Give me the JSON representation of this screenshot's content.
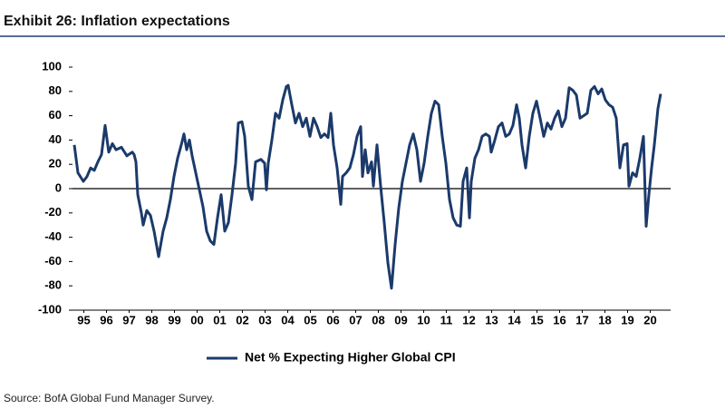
{
  "chart_data": {
    "type": "line",
    "title": "Exhibit 26: Inflation expectations",
    "source": "Source: BofA Global Fund Manager Survey.",
    "x": [
      1995.08,
      1995.24,
      1995.48,
      1995.64,
      1995.8,
      1995.96,
      1996.12,
      1996.28,
      1996.44,
      1996.6,
      1996.76,
      1996.92,
      1997.16,
      1997.4,
      1997.64,
      1997.72,
      1997.8,
      1997.88,
      1998.04,
      1998.12,
      1998.28,
      1998.44,
      1998.6,
      1998.8,
      1999,
      1999.16,
      1999.32,
      1999.48,
      1999.64,
      1999.8,
      1999.92,
      2000.04,
      2000.16,
      2000.28,
      2000.44,
      2000.6,
      2000.76,
      2000.92,
      2001.08,
      2001.24,
      2001.4,
      2001.56,
      2001.72,
      2001.88,
      2002.04,
      2002.2,
      2002.32,
      2002.48,
      2002.6,
      2002.76,
      2002.92,
      2003.08,
      2003.32,
      2003.48,
      2003.56,
      2003.64,
      2003.8,
      2003.96,
      2004.12,
      2004.28,
      2004.44,
      2004.52,
      2004.68,
      2004.84,
      2005,
      2005.16,
      2005.32,
      2005.48,
      2005.64,
      2005.8,
      2005.96,
      2006.12,
      2006.28,
      2006.4,
      2006.52,
      2006.68,
      2006.84,
      2006.92,
      2007.08,
      2007.24,
      2007.4,
      2007.56,
      2007.72,
      2007.8,
      2007.92,
      2008.04,
      2008.2,
      2008.28,
      2008.44,
      2008.6,
      2008.76,
      2008.92,
      2009.08,
      2009.24,
      2009.4,
      2009.56,
      2009.72,
      2009.88,
      2010.04,
      2010.2,
      2010.36,
      2010.52,
      2010.68,
      2010.84,
      2011,
      2011.16,
      2011.32,
      2011.48,
      2011.64,
      2011.8,
      2011.96,
      2012.12,
      2012.24,
      2012.4,
      2012.52,
      2012.6,
      2012.76,
      2012.92,
      2013.08,
      2013.24,
      2013.4,
      2013.48,
      2013.64,
      2013.8,
      2013.96,
      2014.12,
      2014.28,
      2014.44,
      2014.6,
      2014.72,
      2014.84,
      2015,
      2015.16,
      2015.32,
      2015.48,
      2015.64,
      2015.8,
      2015.96,
      2016.12,
      2016.28,
      2016.44,
      2016.6,
      2016.76,
      2016.92,
      2017.08,
      2017.24,
      2017.4,
      2017.56,
      2017.72,
      2017.88,
      2018.04,
      2018.2,
      2018.36,
      2018.52,
      2018.68,
      2018.84,
      2019,
      2019.16,
      2019.32,
      2019.48,
      2019.56,
      2019.72,
      2019.88,
      2020.04,
      2020.2,
      2020.32,
      2020.44,
      2020.56,
      2020.68,
      2020.84,
      2020.96
    ],
    "series": [
      {
        "name": "Net % Expecting Higher Global CPI",
        "color": "#1b3a6b",
        "values": [
          36,
          13,
          6,
          10,
          17,
          15,
          22,
          28,
          52,
          30,
          37,
          32,
          34,
          27,
          30,
          28,
          22,
          -5,
          -20,
          -30,
          -18,
          -22,
          -35,
          -56,
          -35,
          -24,
          -9,
          10,
          25,
          36,
          45,
          32,
          40,
          27,
          13,
          -1,
          -15,
          -35,
          -43,
          -46,
          -24,
          -5,
          -35,
          -28,
          -5,
          21,
          54,
          55,
          43,
          2,
          -9,
          22,
          24,
          21,
          -1,
          21,
          40,
          62,
          58,
          73,
          84,
          85,
          69,
          54,
          62,
          51,
          58,
          43,
          58,
          51,
          42,
          45,
          42,
          62,
          36,
          17,
          -13,
          10,
          13,
          17,
          28,
          43,
          51,
          10,
          32,
          13,
          22,
          2,
          36,
          2,
          -28,
          -61,
          -82,
          -46,
          -16,
          6,
          21,
          36,
          45,
          32,
          6,
          21,
          43,
          62,
          72,
          69,
          43,
          21,
          -9,
          -24,
          -30,
          -31,
          6,
          17,
          -24,
          6,
          25,
          32,
          43,
          45,
          43,
          30,
          40,
          51,
          54,
          43,
          45,
          52,
          69,
          58,
          36,
          17,
          43,
          62,
          72,
          58,
          43,
          54,
          49,
          58,
          64,
          51,
          58,
          83,
          81,
          77,
          58,
          60,
          62,
          81,
          84,
          78,
          82,
          73,
          69,
          67,
          58,
          17,
          36,
          37,
          2,
          13,
          10,
          25,
          43,
          -31,
          -5,
          17,
          36,
          66,
          78
        ]
      }
    ],
    "xlim": [
      1995,
      2021
    ],
    "xticks": [
      {
        "value": 1995.5,
        "label": "95"
      },
      {
        "value": 1996.5,
        "label": "96"
      },
      {
        "value": 1997.5,
        "label": "97"
      },
      {
        "value": 1998.5,
        "label": "98"
      },
      {
        "value": 1999.5,
        "label": "99"
      },
      {
        "value": 2000.5,
        "label": "00"
      },
      {
        "value": 2001.5,
        "label": "01"
      },
      {
        "value": 2002.5,
        "label": "02"
      },
      {
        "value": 2003.5,
        "label": "03"
      },
      {
        "value": 2004.5,
        "label": "04"
      },
      {
        "value": 2005.5,
        "label": "05"
      },
      {
        "value": 2006.5,
        "label": "06"
      },
      {
        "value": 2007.5,
        "label": "07"
      },
      {
        "value": 2008.5,
        "label": "08"
      },
      {
        "value": 2009.5,
        "label": "09"
      },
      {
        "value": 2010.5,
        "label": "10"
      },
      {
        "value": 2011.5,
        "label": "11"
      },
      {
        "value": 2012.5,
        "label": "12"
      },
      {
        "value": 2013.5,
        "label": "13"
      },
      {
        "value": 2014.5,
        "label": "14"
      },
      {
        "value": 2015.5,
        "label": "15"
      },
      {
        "value": 2016.5,
        "label": "16"
      },
      {
        "value": 2017.5,
        "label": "17"
      },
      {
        "value": 2018.5,
        "label": "18"
      },
      {
        "value": 2019.5,
        "label": "19"
      },
      {
        "value": 2020.5,
        "label": "20"
      }
    ],
    "ylim": [
      -100,
      100
    ],
    "yticks": [
      -100,
      -80,
      -60,
      -40,
      -20,
      0,
      20,
      40,
      60,
      80,
      100
    ],
    "grid": false,
    "zero_line": true
  }
}
